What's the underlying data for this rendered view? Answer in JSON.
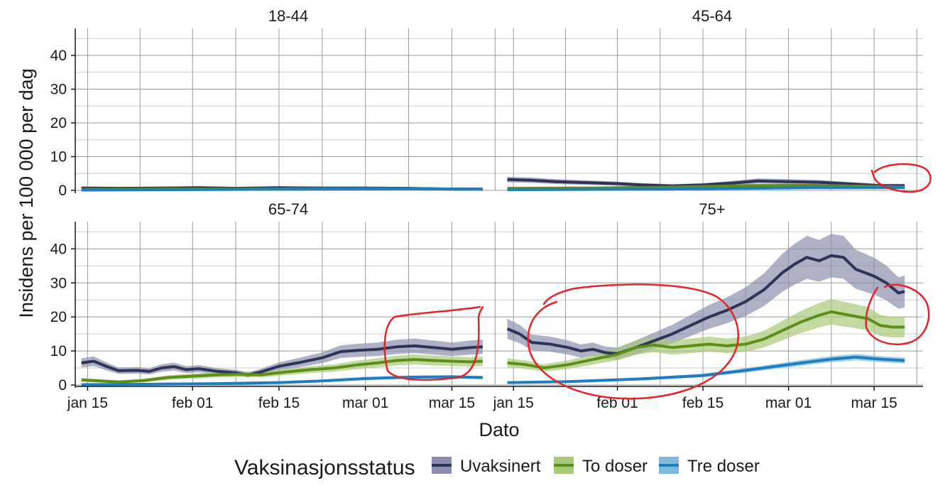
{
  "chart_data": {
    "type": "line",
    "facet_layout": "2x2",
    "xlabel": "Dato",
    "ylabel": "Insidens per 100 000 per dag",
    "ylim": [
      0,
      48
    ],
    "yticks": [
      0,
      10,
      20,
      30,
      40
    ],
    "xlim": [
      "2022-01-13",
      "2022-03-23"
    ],
    "xticks": [
      "2022-01-15",
      "2022-02-01",
      "2022-02-15",
      "2022-03-01",
      "2022-03-15"
    ],
    "xtick_labels": [
      "jan 15",
      "feb 01",
      "feb 15",
      "mar 01",
      "mar 15"
    ],
    "grid": true,
    "legend": {
      "title": "Vaksinasjonsstatus",
      "position": "bottom",
      "entries": [
        "Uvaksinert",
        "To doser",
        "Tre doser"
      ]
    },
    "colors": {
      "Uvaksinert": "#2e3358",
      "To doser": "#5b8f16",
      "Tre doser": "#1f7ec0"
    },
    "band_colors": {
      "Uvaksinert": "#8c8ead",
      "To doser": "#a8c97a",
      "Tre doser": "#7fb9e0"
    },
    "annotations": "red hand-drawn circles over 45-64 (mar 15+), 75+ (jan 20 to feb 18), 75+ (mar 15+) and 65-74 (mar 05+)",
    "facets": [
      {
        "label": "18-44",
        "series": [
          {
            "name": "Uvaksinert",
            "points": [
              [
                "2022-01-14",
                0.7
              ],
              [
                "2022-01-20",
                0.6
              ],
              [
                "2022-01-27",
                0.7
              ],
              [
                "2022-02-02",
                0.8
              ],
              [
                "2022-02-08",
                0.6
              ],
              [
                "2022-02-15",
                0.8
              ],
              [
                "2022-02-22",
                0.7
              ],
              [
                "2022-03-01",
                0.7
              ],
              [
                "2022-03-08",
                0.6
              ],
              [
                "2022-03-15",
                0.4
              ],
              [
                "2022-03-20",
                0.4
              ]
            ]
          },
          {
            "name": "To doser",
            "points": [
              [
                "2022-01-14",
                0.3
              ],
              [
                "2022-01-27",
                0.4
              ],
              [
                "2022-02-08",
                0.4
              ],
              [
                "2022-02-22",
                0.5
              ],
              [
                "2022-03-08",
                0.5
              ],
              [
                "2022-03-20",
                0.3
              ]
            ]
          },
          {
            "name": "Tre doser",
            "points": [
              [
                "2022-01-14",
                0.1
              ],
              [
                "2022-01-27",
                0.2
              ],
              [
                "2022-02-08",
                0.3
              ],
              [
                "2022-02-22",
                0.4
              ],
              [
                "2022-03-08",
                0.5
              ],
              [
                "2022-03-20",
                0.3
              ]
            ]
          }
        ]
      },
      {
        "label": "45-64",
        "series": [
          {
            "name": "Uvaksinert",
            "points": [
              [
                "2022-01-14",
                3.2
              ],
              [
                "2022-01-18",
                3.0
              ],
              [
                "2022-01-22",
                2.6
              ],
              [
                "2022-01-27",
                2.3
              ],
              [
                "2022-02-01",
                2.0
              ],
              [
                "2022-02-05",
                1.6
              ],
              [
                "2022-02-10",
                1.3
              ],
              [
                "2022-02-15",
                1.6
              ],
              [
                "2022-02-20",
                2.2
              ],
              [
                "2022-02-24",
                2.8
              ],
              [
                "2022-03-01",
                2.6
              ],
              [
                "2022-03-06",
                2.4
              ],
              [
                "2022-03-12",
                1.8
              ],
              [
                "2022-03-16",
                1.4
              ],
              [
                "2022-03-20",
                1.4
              ]
            ]
          },
          {
            "name": "To doser",
            "points": [
              [
                "2022-01-14",
                0.6
              ],
              [
                "2022-01-27",
                0.7
              ],
              [
                "2022-02-08",
                0.9
              ],
              [
                "2022-02-22",
                1.4
              ],
              [
                "2022-03-05",
                1.5
              ],
              [
                "2022-03-20",
                1.0
              ]
            ]
          },
          {
            "name": "Tre doser",
            "points": [
              [
                "2022-01-14",
                0.2
              ],
              [
                "2022-01-27",
                0.3
              ],
              [
                "2022-02-08",
                0.4
              ],
              [
                "2022-02-22",
                0.6
              ],
              [
                "2022-03-05",
                0.8
              ],
              [
                "2022-03-20",
                0.8
              ]
            ]
          }
        ]
      },
      {
        "label": "65-74",
        "series": [
          {
            "name": "Uvaksinert",
            "points": [
              [
                "2022-01-14",
                6.5
              ],
              [
                "2022-01-16",
                7.0
              ],
              [
                "2022-01-18",
                5.5
              ],
              [
                "2022-01-20",
                4.2
              ],
              [
                "2022-01-23",
                4.3
              ],
              [
                "2022-01-25",
                4.0
              ],
              [
                "2022-01-27",
                5.0
              ],
              [
                "2022-01-29",
                5.4
              ],
              [
                "2022-01-31",
                4.5
              ],
              [
                "2022-02-02",
                4.8
              ],
              [
                "2022-02-05",
                4.0
              ],
              [
                "2022-02-08",
                3.6
              ],
              [
                "2022-02-10",
                3.0
              ],
              [
                "2022-02-12",
                3.8
              ],
              [
                "2022-02-15",
                5.5
              ],
              [
                "2022-02-18",
                6.5
              ],
              [
                "2022-02-22",
                8.0
              ],
              [
                "2022-02-25",
                9.8
              ],
              [
                "2022-02-28",
                10.2
              ],
              [
                "2022-03-03",
                10.5
              ],
              [
                "2022-03-06",
                11.2
              ],
              [
                "2022-03-09",
                11.5
              ],
              [
                "2022-03-12",
                11.0
              ],
              [
                "2022-03-15",
                10.5
              ],
              [
                "2022-03-18",
                11.0
              ],
              [
                "2022-03-20",
                11.2
              ]
            ]
          },
          {
            "name": "To doser",
            "points": [
              [
                "2022-01-14",
                1.5
              ],
              [
                "2022-01-17",
                1.2
              ],
              [
                "2022-01-20",
                0.9
              ],
              [
                "2022-01-24",
                1.3
              ],
              [
                "2022-01-28",
                2.2
              ],
              [
                "2022-02-01",
                2.6
              ],
              [
                "2022-02-05",
                3.0
              ],
              [
                "2022-02-09",
                3.2
              ],
              [
                "2022-02-12",
                3.0
              ],
              [
                "2022-02-16",
                3.8
              ],
              [
                "2022-02-20",
                4.5
              ],
              [
                "2022-02-24",
                5.0
              ],
              [
                "2022-02-28",
                6.0
              ],
              [
                "2022-03-03",
                6.5
              ],
              [
                "2022-03-06",
                7.2
              ],
              [
                "2022-03-09",
                7.5
              ],
              [
                "2022-03-12",
                7.2
              ],
              [
                "2022-03-15",
                7.0
              ],
              [
                "2022-03-18",
                6.8
              ],
              [
                "2022-03-20",
                7.0
              ]
            ]
          },
          {
            "name": "Tre doser",
            "points": [
              [
                "2022-01-14",
                0.1
              ],
              [
                "2022-01-24",
                0.2
              ],
              [
                "2022-02-05",
                0.4
              ],
              [
                "2022-02-15",
                0.7
              ],
              [
                "2022-02-22",
                1.2
              ],
              [
                "2022-03-01",
                1.9
              ],
              [
                "2022-03-08",
                2.3
              ],
              [
                "2022-03-15",
                2.4
              ],
              [
                "2022-03-20",
                2.2
              ]
            ]
          }
        ]
      },
      {
        "label": "75+",
        "series": [
          {
            "name": "Uvaksinert",
            "points": [
              [
                "2022-01-14",
                16.5
              ],
              [
                "2022-01-16",
                15.0
              ],
              [
                "2022-01-18",
                12.5
              ],
              [
                "2022-01-21",
                12.0
              ],
              [
                "2022-01-24",
                11.0
              ],
              [
                "2022-01-26",
                10.0
              ],
              [
                "2022-01-28",
                10.5
              ],
              [
                "2022-01-30",
                9.5
              ],
              [
                "2022-02-01",
                9.2
              ],
              [
                "2022-02-04",
                11.0
              ],
              [
                "2022-02-07",
                13.0
              ],
              [
                "2022-02-10",
                15.0
              ],
              [
                "2022-02-13",
                17.5
              ],
              [
                "2022-02-16",
                20.0
              ],
              [
                "2022-02-19",
                22.0
              ],
              [
                "2022-02-22",
                24.5
              ],
              [
                "2022-02-25",
                28.0
              ],
              [
                "2022-02-28",
                33.0
              ],
              [
                "2022-03-02",
                35.5
              ],
              [
                "2022-03-04",
                37.5
              ],
              [
                "2022-03-06",
                36.5
              ],
              [
                "2022-03-08",
                38.0
              ],
              [
                "2022-03-10",
                37.5
              ],
              [
                "2022-03-12",
                34.0
              ],
              [
                "2022-03-15",
                32.0
              ],
              [
                "2022-03-17",
                30.0
              ],
              [
                "2022-03-19",
                27.0
              ],
              [
                "2022-03-20",
                27.5
              ]
            ]
          },
          {
            "name": "To doser",
            "points": [
              [
                "2022-01-14",
                6.5
              ],
              [
                "2022-01-17",
                6.0
              ],
              [
                "2022-01-20",
                5.0
              ],
              [
                "2022-01-24",
                6.0
              ],
              [
                "2022-01-28",
                7.5
              ],
              [
                "2022-02-01",
                9.0
              ],
              [
                "2022-02-04",
                11.0
              ],
              [
                "2022-02-07",
                11.8
              ],
              [
                "2022-02-10",
                11.0
              ],
              [
                "2022-02-13",
                11.5
              ],
              [
                "2022-02-16",
                12.0
              ],
              [
                "2022-02-19",
                11.5
              ],
              [
                "2022-02-22",
                12.0
              ],
              [
                "2022-02-25",
                13.5
              ],
              [
                "2022-02-28",
                16.0
              ],
              [
                "2022-03-03",
                18.5
              ],
              [
                "2022-03-06",
                20.5
              ],
              [
                "2022-03-08",
                21.5
              ],
              [
                "2022-03-11",
                20.5
              ],
              [
                "2022-03-14",
                19.5
              ],
              [
                "2022-03-16",
                17.5
              ],
              [
                "2022-03-18",
                17.0
              ],
              [
                "2022-03-20",
                17.0
              ]
            ]
          },
          {
            "name": "Tre doser",
            "points": [
              [
                "2022-01-14",
                0.7
              ],
              [
                "2022-01-24",
                1.0
              ],
              [
                "2022-02-05",
                1.8
              ],
              [
                "2022-02-15",
                2.8
              ],
              [
                "2022-02-22",
                4.3
              ],
              [
                "2022-03-01",
                6.0
              ],
              [
                "2022-03-08",
                7.6
              ],
              [
                "2022-03-12",
                8.2
              ],
              [
                "2022-03-16",
                7.6
              ],
              [
                "2022-03-20",
                7.2
              ]
            ]
          }
        ]
      }
    ]
  }
}
